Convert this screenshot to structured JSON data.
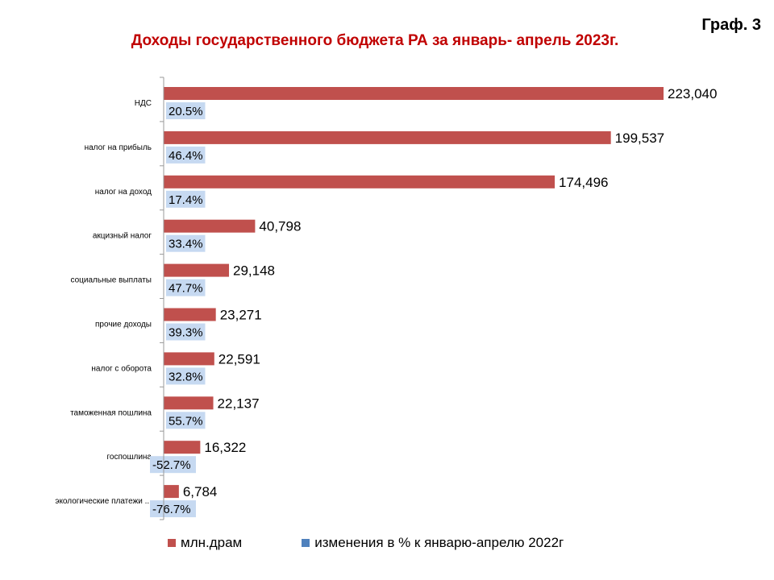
{
  "header": {
    "corner_label": "Граф. 3",
    "title": "Доходы государственного бюджета РА за январь- апрель 2023г."
  },
  "colors": {
    "title": "#c00000",
    "bar": "#c0504d",
    "pct_box": "#c6d9f1",
    "legend_pct": "#4f81bd"
  },
  "chart_data": {
    "type": "bar",
    "orientation": "horizontal",
    "title": "Доходы государственного бюджета РА за январь- апрель 2023г.",
    "categories": [
      "НДС",
      "налог на прибыль",
      "налог  на доход",
      "акцизный налог",
      "социальные выплаты",
      "прочие  доходы",
      "налог с оборота",
      "таможенная пошлина",
      "госпошлина",
      "экологические платежи ..."
    ],
    "series": [
      {
        "name": "млн.драм",
        "values": [
          223040,
          199537,
          174496,
          40798,
          29148,
          23271,
          22591,
          22137,
          16322,
          6784
        ],
        "labels": [
          "223,040",
          "199,537",
          "174,496",
          "40,798",
          "29,148",
          "23,271",
          "22,591",
          "22,137",
          "16,322",
          "6,784"
        ]
      },
      {
        "name": "изменения  в %  к январю-апрелю  2022г",
        "values": [
          20.5,
          46.4,
          17.4,
          33.4,
          47.7,
          39.3,
          32.8,
          55.7,
          -52.7,
          -76.7
        ],
        "labels": [
          "20.5%",
          "46.4%",
          "17.4%",
          "33.4%",
          "47.7%",
          "39.3%",
          "32.8%",
          "55.7%",
          "-52.7%",
          "-76.7%"
        ]
      }
    ],
    "xlim": [
      0,
      223040
    ],
    "grid": false,
    "legend_position": "bottom"
  }
}
